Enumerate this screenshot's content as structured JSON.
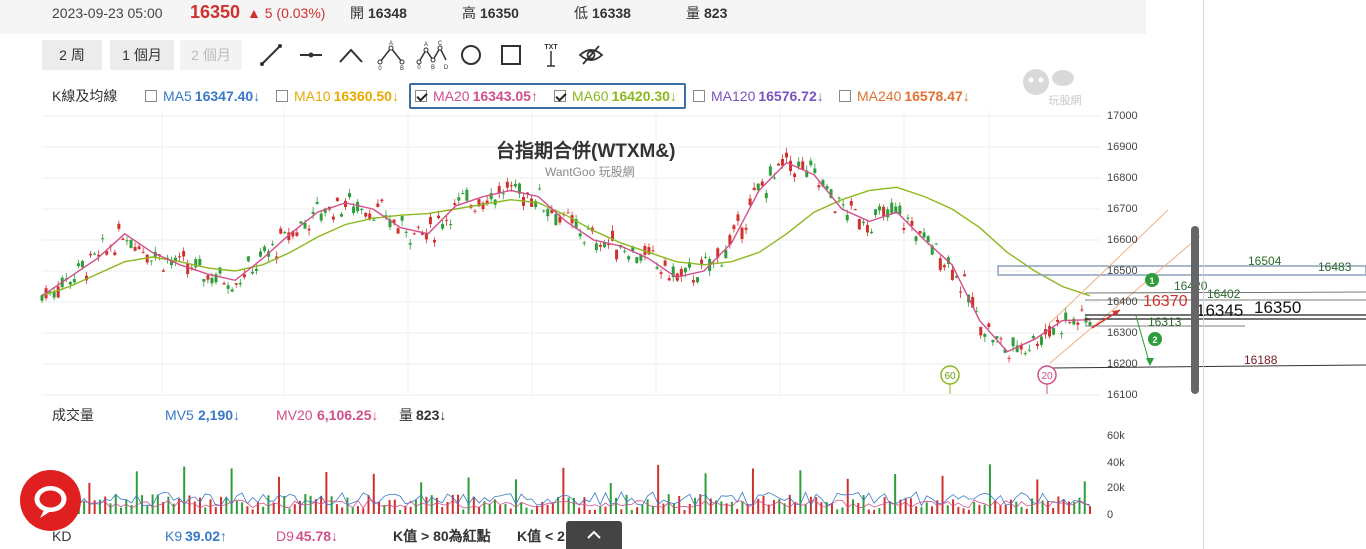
{
  "quote": {
    "datetime": "2023-09-23 05:00",
    "price": "16350",
    "change": "▲ 5 (0.03%)",
    "open_label": "開",
    "open": "16348",
    "high_label": "高",
    "high": "16350",
    "low_label": "低",
    "low": "16338",
    "volume_label": "量",
    "volume": "823"
  },
  "periods": [
    "2 周",
    "1 個月",
    "2 個月"
  ],
  "tools": [
    "line-tool",
    "horizontal-line-tool",
    "wave-tool",
    "abc-pattern-tool",
    "abcd-pattern-tool",
    "circle-tool",
    "rectangle-tool",
    "text-tool",
    "hide-drawings-tool"
  ],
  "tool_glyph_text": {
    "abc": [
      "A",
      "B",
      "0"
    ],
    "abcd": [
      "A",
      "B",
      "C",
      "D",
      "0"
    ],
    "txt": "TXT"
  },
  "ma_bar": {
    "label": "K線及均線",
    "items": [
      {
        "name": "MA5",
        "value": "16347.40↓",
        "checked": false,
        "color": "#3878c8"
      },
      {
        "name": "MA10",
        "value": "16360.50↓",
        "checked": false,
        "color": "#e8a800"
      },
      {
        "name": "MA20",
        "value": "16343.05↑",
        "checked": true,
        "color": "#d0508a"
      },
      {
        "name": "MA60",
        "value": "16420.30↓",
        "checked": true,
        "color": "#8cb81e"
      },
      {
        "name": "MA120",
        "value": "16576.72↓",
        "checked": false,
        "color": "#7a52c0"
      },
      {
        "name": "MA240",
        "value": "16578.47↓",
        "checked": false,
        "color": "#e07030"
      }
    ]
  },
  "logo_text": "玩股網",
  "chart": {
    "title": "台指期合併(WTXM&)",
    "watermark": "WantGoo 玩股網",
    "price_ticks": [
      "17000",
      "16900",
      "16800",
      "16700",
      "16600",
      "16500",
      "16400",
      "16300",
      "16200",
      "16100"
    ],
    "annotations": {
      "l16504": "16504",
      "l16483": "16483",
      "l16420": "16420",
      "l16402": "16402",
      "l16370": "16370",
      "l16345": "16345",
      "l16350": "16350",
      "l16313": "16313",
      "l16188": "16188",
      "marker60": "60",
      "marker20": "20",
      "badge1": "1",
      "badge2": "2"
    }
  },
  "volume": {
    "label": "成交量",
    "mv5_name": "MV5",
    "mv5": "2,190↓",
    "mv20_name": "MV20",
    "mv20": "6,106.25↓",
    "vol_name": "量",
    "vol": "823↓",
    "ticks": [
      "60k",
      "40k",
      "20k",
      "0"
    ]
  },
  "kd": {
    "label": "KD",
    "k9_name": "K9",
    "k9": "39.02↑",
    "d9_name": "D9",
    "d9": "45.78↓",
    "hint1": "K值 > 80為紅點",
    "hint2": "K值 < 2"
  },
  "colors": {
    "up": "#d0312d",
    "down": "#2e9e3a",
    "ma20": "#d0508a",
    "ma60": "#8cb81e",
    "accent": "#3a6ea5"
  },
  "chart_data": {
    "type": "line",
    "title": "台指期合併(WTXM&)",
    "ylim": [
      16100,
      17000
    ],
    "series": [
      {
        "name": "MA20",
        "values": [
          16420,
          16480,
          16540,
          16620,
          16560,
          16520,
          16490,
          16470,
          16540,
          16620,
          16690,
          16720,
          16700,
          16640,
          16620,
          16710,
          16740,
          16760,
          16740,
          16660,
          16600,
          16580,
          16540,
          16480,
          16500,
          16590,
          16760,
          16850,
          16810,
          16700,
          16660,
          16690,
          16600,
          16520,
          16340,
          16240,
          16280,
          16340,
          16343
        ]
      },
      {
        "name": "MA60",
        "values": [
          16420,
          16450,
          16490,
          16530,
          16545,
          16530,
          16510,
          16500,
          16520,
          16560,
          16610,
          16650,
          16670,
          16680,
          16685,
          16700,
          16715,
          16730,
          16720,
          16680,
          16630,
          16590,
          16560,
          16530,
          16520,
          16530,
          16560,
          16620,
          16690,
          16730,
          16760,
          16770,
          16740,
          16700,
          16640,
          16560,
          16500,
          16450,
          16420
        ]
      }
    ]
  }
}
